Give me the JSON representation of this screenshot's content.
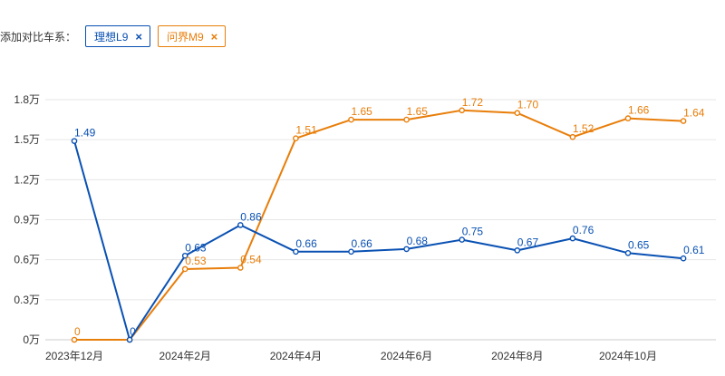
{
  "filter": {
    "label": "添加对比车系：",
    "chips": [
      {
        "label": "理想L9",
        "color": "#0a51b3"
      },
      {
        "label": "问界M9",
        "color": "#e87e0a"
      }
    ],
    "close_icon": "close-icon"
  },
  "chart_data": {
    "type": "line",
    "title": "",
    "xlabel": "",
    "ylabel": "",
    "ylim": [
      0,
      1.8
    ],
    "y_ticks": [
      {
        "value": 0,
        "label": "0万"
      },
      {
        "value": 0.3,
        "label": "0.3万"
      },
      {
        "value": 0.6,
        "label": "0.6万"
      },
      {
        "value": 0.9,
        "label": "0.9万"
      },
      {
        "value": 1.2,
        "label": "1.2万"
      },
      {
        "value": 1.5,
        "label": "1.5万"
      },
      {
        "value": 1.8,
        "label": "1.8万"
      }
    ],
    "x": [
      "2023-12",
      "2024-01",
      "2024-02",
      "2024-03",
      "2024-04",
      "2024-05",
      "2024-06",
      "2024-07",
      "2024-08",
      "2024-09",
      "2024-10",
      "2024-11"
    ],
    "x_tick_labels": [
      {
        "index": 0,
        "label": "2023年12月"
      },
      {
        "index": 2,
        "label": "2024年2月"
      },
      {
        "index": 4,
        "label": "2024年4月"
      },
      {
        "index": 6,
        "label": "2024年6月"
      },
      {
        "index": 8,
        "label": "2024年8月"
      },
      {
        "index": 10,
        "label": "2024年10月"
      }
    ],
    "grid": true,
    "series": [
      {
        "name": "理想L9",
        "color": "#0a51b3",
        "values": [
          1.49,
          0,
          0.63,
          0.86,
          0.66,
          0.66,
          0.68,
          0.75,
          0.67,
          0.76,
          0.65,
          0.61
        ],
        "labels": [
          "1.49",
          "0",
          "0.63",
          "0.86",
          "0.66",
          "0.66",
          "0.68",
          "0.75",
          "0.67",
          "0.76",
          "0.65",
          "0.61"
        ]
      },
      {
        "name": "问界M9",
        "color": "#e87e0a",
        "values": [
          0,
          0,
          0.53,
          0.54,
          1.51,
          1.65,
          1.65,
          1.72,
          1.7,
          1.52,
          1.66,
          1.64
        ],
        "labels": [
          "0",
          "",
          "0.53",
          "0.54",
          "1.51",
          "1.65",
          "1.65",
          "1.72",
          "1.70",
          "1.52",
          "1.66",
          "1.64"
        ]
      }
    ]
  }
}
